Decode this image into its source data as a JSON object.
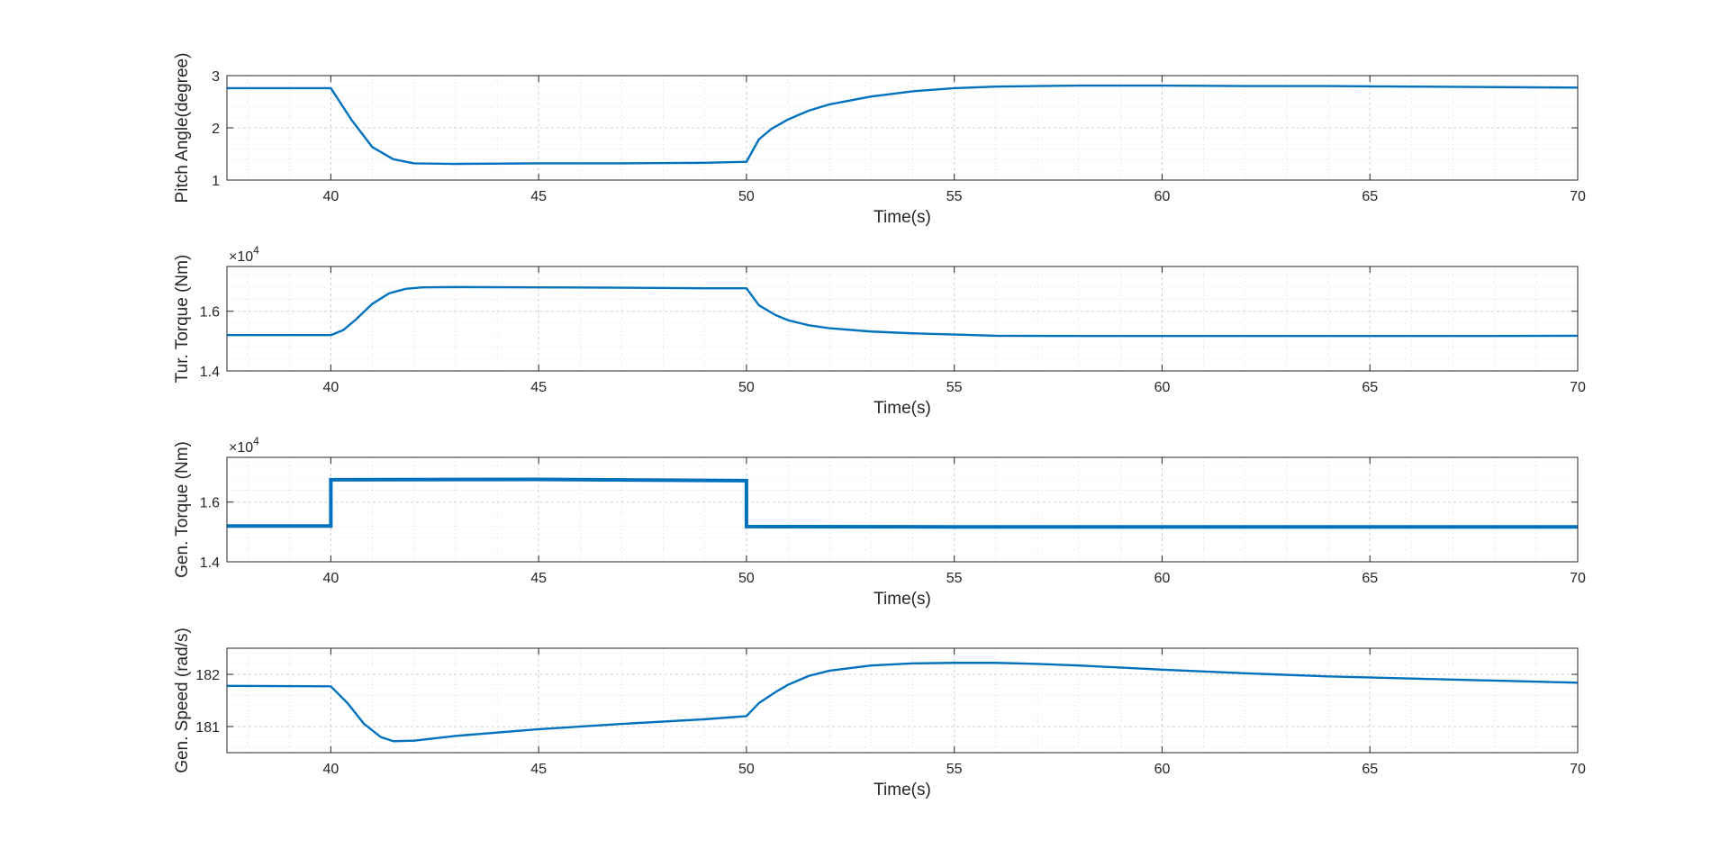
{
  "figure": {
    "background": "#ffffff",
    "line_color": "#0072bd",
    "grid_color": "#dcdcdc",
    "axis_color": "#262626"
  },
  "chart_data": [
    {
      "type": "line",
      "title": "",
      "xlabel": "Time(s)",
      "ylabel": "Pitch Angle(degree)",
      "xlim": [
        37.5,
        70
      ],
      "ylim": [
        1,
        3
      ],
      "xticks": [
        40,
        45,
        50,
        55,
        60,
        65,
        70
      ],
      "yticks": [
        1,
        2,
        3
      ],
      "ytick_labels": [
        "1",
        "2",
        "3"
      ],
      "exponent": "",
      "grid": true,
      "minor_grid": true,
      "series": [
        {
          "x": [
            37.5,
            40,
            40.5,
            41,
            41.5,
            42,
            43,
            45,
            47,
            49,
            50,
            50.3,
            50.6,
            51,
            51.5,
            52,
            53,
            54,
            55,
            56,
            57,
            58,
            60,
            62,
            64,
            66,
            68,
            70
          ],
          "y": [
            2.76,
            2.76,
            2.15,
            1.63,
            1.4,
            1.32,
            1.31,
            1.32,
            1.32,
            1.33,
            1.35,
            1.78,
            1.98,
            2.16,
            2.33,
            2.45,
            2.6,
            2.7,
            2.76,
            2.79,
            2.8,
            2.81,
            2.81,
            2.8,
            2.8,
            2.79,
            2.78,
            2.77
          ]
        }
      ]
    },
    {
      "type": "line",
      "title": "",
      "xlabel": "Time(s)",
      "ylabel": "Tur. Torque (Nm)",
      "xlim": [
        37.5,
        70
      ],
      "ylim": [
        1.4,
        1.75
      ],
      "xticks": [
        40,
        45,
        50,
        55,
        60,
        65,
        70
      ],
      "yticks": [
        1.4,
        1.6
      ],
      "ytick_labels": [
        "1.4",
        "1.6"
      ],
      "exponent": "4",
      "grid": true,
      "minor_grid": true,
      "series": [
        {
          "x": [
            37.5,
            40,
            40.3,
            40.6,
            41,
            41.4,
            41.8,
            42.2,
            43,
            45,
            47,
            49,
            50,
            50.3,
            50.7,
            51,
            51.5,
            52,
            53,
            54,
            55,
            56,
            58,
            60,
            62,
            64,
            66,
            68,
            70
          ],
          "y": [
            1.52,
            1.52,
            1.537,
            1.572,
            1.625,
            1.66,
            1.675,
            1.68,
            1.681,
            1.68,
            1.679,
            1.677,
            1.677,
            1.62,
            1.587,
            1.57,
            1.553,
            1.543,
            1.532,
            1.526,
            1.522,
            1.518,
            1.517,
            1.517,
            1.517,
            1.517,
            1.517,
            1.517,
            1.518
          ]
        }
      ]
    },
    {
      "type": "line",
      "title": "",
      "xlabel": "Time(s)",
      "ylabel": "Gen. Torque (Nm)",
      "xlim": [
        37.5,
        70
      ],
      "ylim": [
        1.4,
        1.75
      ],
      "xticks": [
        40,
        45,
        50,
        55,
        60,
        65,
        70
      ],
      "yticks": [
        1.4,
        1.6
      ],
      "ytick_labels": [
        "1.4",
        "1.6"
      ],
      "exponent": "4",
      "grid": true,
      "minor_grid": true,
      "series": [
        {
          "x": [
            37.5,
            40,
            40,
            45,
            50,
            50,
            55,
            60,
            65,
            70
          ],
          "y": [
            1.52,
            1.52,
            1.675,
            1.676,
            1.672,
            1.518,
            1.517,
            1.517,
            1.517,
            1.517
          ],
          "noise_band": 0.012
        }
      ]
    },
    {
      "type": "line",
      "title": "",
      "xlabel": "Time(s)",
      "ylabel": "Gen. Speed (rad/s)",
      "xlim": [
        37.5,
        70
      ],
      "ylim": [
        180.5,
        182.5
      ],
      "xticks": [
        40,
        45,
        50,
        55,
        60,
        65,
        70
      ],
      "yticks": [
        181,
        182
      ],
      "ytick_labels": [
        "181",
        "182"
      ],
      "exponent": "",
      "grid": true,
      "minor_grid": true,
      "series": [
        {
          "x": [
            37.5,
            40,
            40.4,
            40.8,
            41.2,
            41.5,
            42,
            43,
            45,
            47,
            49,
            50,
            50.3,
            50.7,
            51,
            51.5,
            52,
            53,
            54,
            55,
            56,
            57,
            58,
            60,
            62,
            64,
            66,
            68,
            70
          ],
          "y": [
            181.78,
            181.77,
            181.45,
            181.05,
            180.8,
            180.72,
            180.73,
            180.82,
            180.95,
            181.05,
            181.14,
            181.2,
            181.45,
            181.66,
            181.8,
            181.97,
            182.07,
            182.17,
            182.21,
            182.22,
            182.22,
            182.2,
            182.17,
            182.09,
            182.02,
            181.96,
            181.92,
            181.88,
            181.84
          ]
        }
      ]
    }
  ]
}
